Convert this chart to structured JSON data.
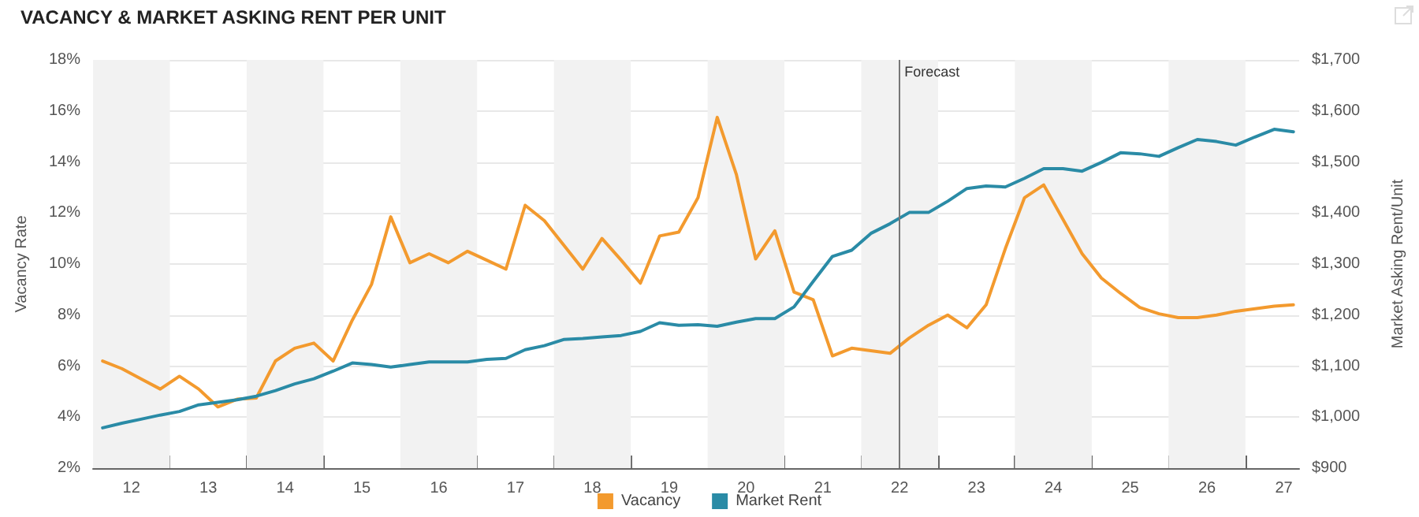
{
  "chart_data": {
    "type": "line",
    "title": "VACANCY & MARKET ASKING RENT PER UNIT",
    "ylabel": "Vacancy Rate",
    "y2label": "Market Asking Rent/Unit",
    "x": [
      11.625,
      11.875,
      12.125,
      12.375,
      12.625,
      12.875,
      13.125,
      13.375,
      13.625,
      13.875,
      14.125,
      14.375,
      14.625,
      14.875,
      15.125,
      15.375,
      15.625,
      15.875,
      16.125,
      16.375,
      16.625,
      16.875,
      17.125,
      17.375,
      17.625,
      17.875,
      18.125,
      18.375,
      18.625,
      18.875,
      19.125,
      19.375,
      19.625,
      19.875,
      20.125,
      20.375,
      20.625,
      20.875,
      21.125,
      21.375,
      21.625,
      21.875,
      22.125,
      22.375,
      22.625,
      22.875,
      23.125,
      23.375,
      23.625,
      23.875,
      24.125,
      24.375,
      24.625,
      24.875,
      25.125,
      25.375,
      25.625,
      25.875,
      26.125,
      26.375,
      26.625,
      26.875,
      27.125
    ],
    "series": [
      {
        "name": "Vacancy",
        "color": "#f39a2e",
        "values": [
          6.2,
          5.9,
          5.5,
          5.1,
          5.6,
          5.1,
          4.4,
          4.7,
          4.75,
          6.2,
          6.7,
          6.9,
          6.2,
          7.8,
          9.2,
          11.85,
          10.05,
          10.4,
          10.05,
          10.5,
          10.15,
          9.8,
          12.3,
          11.7,
          10.75,
          9.8,
          11.0,
          10.15,
          9.25,
          11.1,
          11.25,
          12.6,
          15.75,
          13.5,
          10.2,
          11.3,
          8.9,
          8.6,
          6.4,
          6.7,
          6.6,
          6.5,
          7.1,
          7.6,
          8.0,
          7.5,
          8.4,
          10.6,
          12.6,
          13.1,
          11.75,
          10.4,
          9.45,
          8.85,
          8.3,
          8.05,
          7.9,
          7.9,
          8.0,
          8.15,
          8.25,
          8.35,
          8.4
        ]
      },
      {
        "name": "Market Rent",
        "color": "#2a8ba6",
        "axis": "y2",
        "values": [
          979,
          988,
          996,
          1004,
          1011,
          1024,
          1029,
          1034,
          1041,
          1052,
          1065,
          1075,
          1090,
          1106,
          1103,
          1098,
          1103,
          1108,
          1108,
          1108,
          1113,
          1115,
          1132,
          1140,
          1152,
          1154,
          1157,
          1160,
          1168,
          1185,
          1180,
          1181,
          1178,
          1186,
          1193,
          1193,
          1216,
          1266,
          1315,
          1327,
          1360,
          1379,
          1401,
          1401,
          1423,
          1448,
          1453,
          1451,
          1468,
          1487,
          1487,
          1482,
          1499,
          1518,
          1516,
          1511,
          1528,
          1544,
          1540,
          1533,
          1549,
          1564,
          1559
        ]
      }
    ],
    "xlim": [
      11.5,
      27.2
    ],
    "xticks": [
      {
        "value": 11.5,
        "label": null
      },
      12,
      {
        "value": 12.5,
        "label": null
      },
      13,
      {
        "value": 13.5,
        "label": null
      },
      14,
      {
        "value": 14.5,
        "label": null
      },
      15,
      {
        "value": 15.5,
        "label": null
      },
      16,
      {
        "value": 16.5,
        "label": null
      },
      17,
      {
        "value": 17.5,
        "label": null
      },
      18,
      {
        "value": 18.5,
        "label": null
      },
      19,
      {
        "value": 19.5,
        "label": null
      },
      20,
      {
        "value": 20.5,
        "label": null
      },
      21,
      {
        "value": 21.5,
        "label": null
      },
      22,
      {
        "value": 22.5,
        "label": null
      },
      23,
      {
        "value": 23.5,
        "label": null
      },
      24,
      {
        "value": 24.5,
        "label": null
      },
      25,
      {
        "value": 25.5,
        "label": null
      },
      26,
      {
        "value": 26.5,
        "label": null
      },
      27
    ],
    "ylim": [
      2,
      18
    ],
    "yticks": [
      {
        "value": 2,
        "label": "2%"
      },
      {
        "value": 4,
        "label": "4%"
      },
      {
        "value": 6,
        "label": "6%"
      },
      {
        "value": 8,
        "label": "8%"
      },
      {
        "value": 10,
        "label": "10%"
      },
      {
        "value": 12,
        "label": "12%"
      },
      {
        "value": 14,
        "label": "14%"
      },
      {
        "value": 16,
        "label": "16%"
      },
      {
        "value": 18,
        "label": "18%"
      }
    ],
    "y2lim": [
      900,
      1700
    ],
    "y2ticks": [
      {
        "value": 900,
        "label": "$900"
      },
      {
        "value": 1000,
        "label": "$1,000"
      },
      {
        "value": 1100,
        "label": "$1,100"
      },
      {
        "value": 1200,
        "label": "$1,200"
      },
      {
        "value": 1300,
        "label": "$1,300"
      },
      {
        "value": 1400,
        "label": "$1,400"
      },
      {
        "value": 1500,
        "label": "$1,500"
      },
      {
        "value": 1600,
        "label": "$1,600"
      },
      {
        "value": 1700,
        "label": "$1,700"
      }
    ],
    "bands": [
      {
        "axis": "x",
        "from": 11.5,
        "to": 12.5,
        "color": "#f2f2f2"
      },
      {
        "axis": "x",
        "from": 13.5,
        "to": 14.5,
        "color": "#f2f2f2"
      },
      {
        "axis": "x",
        "from": 15.5,
        "to": 16.5,
        "color": "#f2f2f2"
      },
      {
        "axis": "x",
        "from": 17.5,
        "to": 18.5,
        "color": "#f2f2f2"
      },
      {
        "axis": "x",
        "from": 19.5,
        "to": 20.5,
        "color": "#f2f2f2"
      },
      {
        "axis": "x",
        "from": 21.5,
        "to": 22.5,
        "color": "#f2f2f2"
      },
      {
        "axis": "x",
        "from": 23.5,
        "to": 24.5,
        "color": "#f2f2f2"
      },
      {
        "axis": "x",
        "from": 25.5,
        "to": 26.5,
        "color": "#f2f2f2"
      }
    ],
    "ref_lines": [
      {
        "axis": "x",
        "value": 22,
        "label": "Forecast",
        "color": "#777777",
        "line_style": "solid"
      }
    ],
    "grid": "y",
    "legend": "bottom",
    "marker": "none",
    "line_style": "solid"
  }
}
